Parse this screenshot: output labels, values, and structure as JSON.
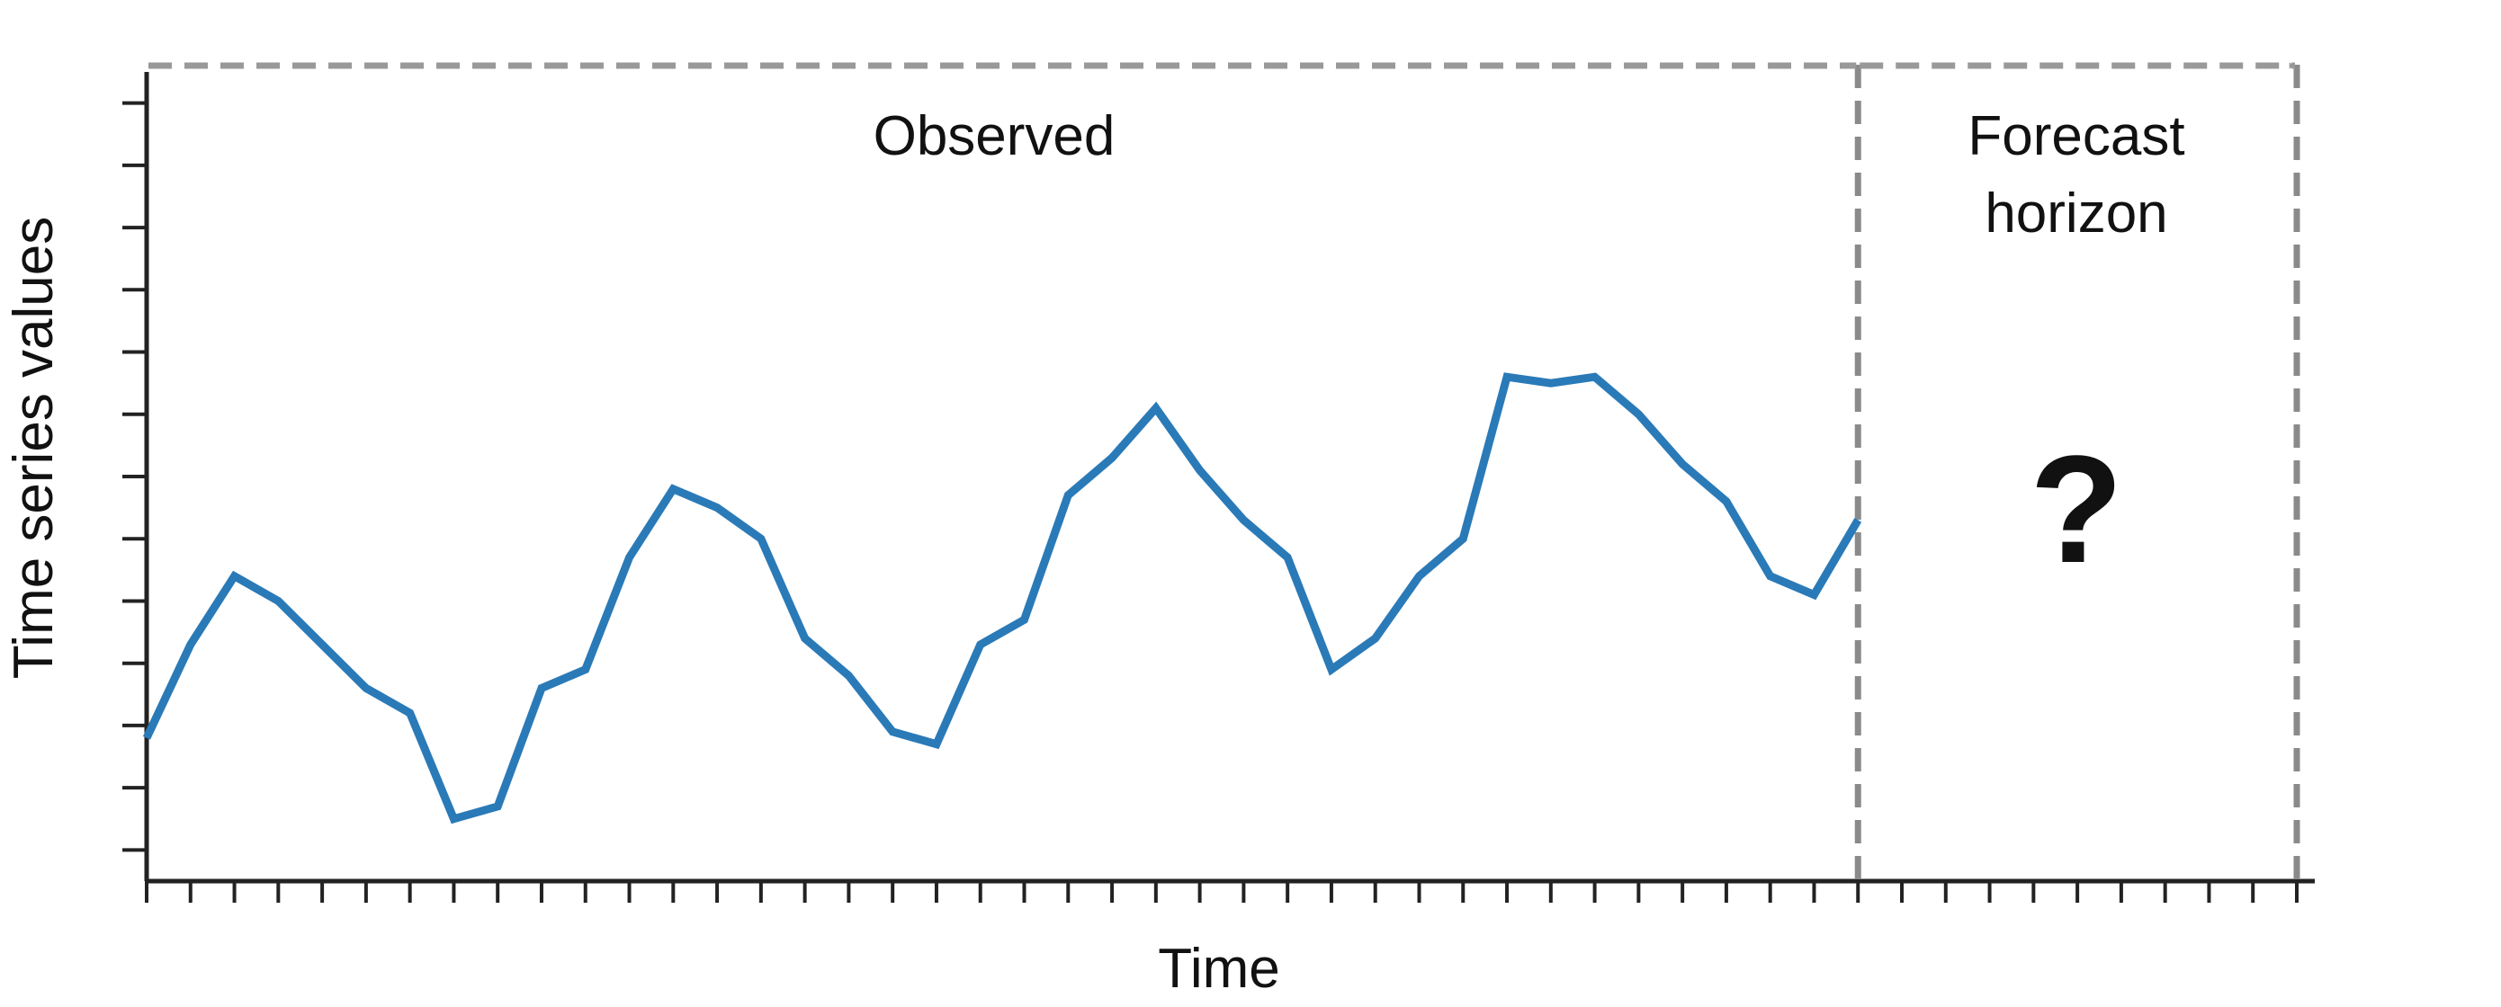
{
  "chart_data": {
    "type": "line",
    "xlabel": "Time",
    "ylabel": "Time series values",
    "x": [
      0,
      1,
      2,
      3,
      4,
      5,
      6,
      7,
      8,
      9,
      10,
      11,
      12,
      13,
      14,
      15,
      16,
      17,
      18,
      19,
      20,
      21,
      22,
      23,
      24,
      25,
      26,
      27,
      28,
      29,
      30,
      31,
      32,
      33,
      34,
      35,
      36,
      37,
      38,
      39
    ],
    "series": [
      {
        "values": [
          1.8,
          3.3,
          4.4,
          4.0,
          3.3,
          2.6,
          2.2,
          0.5,
          0.7,
          2.6,
          2.9,
          4.7,
          5.8,
          5.5,
          5.0,
          3.4,
          2.8,
          1.9,
          1.7,
          3.3,
          3.7,
          5.7,
          6.3,
          7.1,
          6.1,
          5.3,
          4.7,
          2.9,
          3.4,
          4.4,
          5.0,
          7.6,
          7.5,
          7.6,
          7.0,
          6.2,
          5.6,
          4.4,
          4.1,
          5.3
        ],
        "color": "#2a7ab8"
      }
    ],
    "ylim": [
      -0.5,
      12.5
    ],
    "y_ticks": [
      0,
      1,
      2,
      3,
      4,
      5,
      6,
      7,
      8,
      9,
      10,
      11,
      12
    ],
    "xlim": [
      0,
      49
    ],
    "observed_end": 39,
    "forecast_end": 49,
    "regions": {
      "observed": "Observed",
      "forecast": "Forecast horizon",
      "unknown_mark": "?"
    },
    "grid": false,
    "tick_labels_shown": false,
    "colors": {
      "line": "#2a7ab8",
      "axis": "#222222",
      "annotation": "#8a8a8a"
    }
  }
}
